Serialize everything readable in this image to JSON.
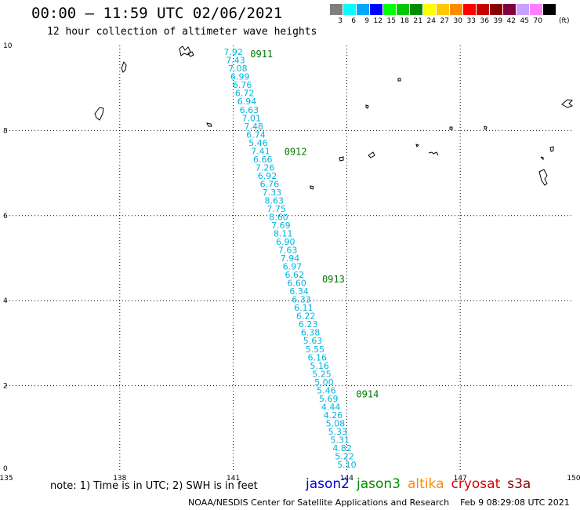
{
  "header": {
    "title": "00:00 – 11:59 UTC 02/06/2021",
    "subtitle": "12 hour collection of altimeter wave heights"
  },
  "scale": {
    "unit": "(ft)",
    "bins": [
      {
        "label": "3",
        "color": "#7f7f7f"
      },
      {
        "label": "6",
        "color": "#00ffff"
      },
      {
        "label": "9",
        "color": "#00a8ff"
      },
      {
        "label": "12",
        "color": "#0000ff"
      },
      {
        "label": "15",
        "color": "#00ff00"
      },
      {
        "label": "18",
        "color": "#00c800"
      },
      {
        "label": "21",
        "color": "#008c00"
      },
      {
        "label": "24",
        "color": "#ffff00"
      },
      {
        "label": "27",
        "color": "#ffc800"
      },
      {
        "label": "30",
        "color": "#ff8c00"
      },
      {
        "label": "33",
        "color": "#ff0000"
      },
      {
        "label": "36",
        "color": "#c80000"
      },
      {
        "label": "39",
        "color": "#8c0000"
      },
      {
        "label": "42",
        "color": "#800040"
      },
      {
        "label": "45",
        "color": "#c8a0ff"
      },
      {
        "label": "70",
        "color": "#ff80ff"
      },
      {
        "label": "",
        "color": "#000000"
      }
    ]
  },
  "map": {
    "lon_range": [
      135,
      150
    ],
    "lat_range": [
      0,
      10
    ],
    "lon_ticks": [
      "135",
      "138",
      "141",
      "144",
      "147",
      "150"
    ],
    "lat_ticks": [
      "0",
      "2",
      "4",
      "6",
      "8",
      "10"
    ],
    "track_color": "#00b4dc",
    "time_color": "#007800",
    "track_start": {
      "lon": 141.0,
      "lat": 9.85
    },
    "track_end": {
      "lon": 144.0,
      "lat": 0.0
    },
    "swh": [
      "7.92",
      "7.43",
      "7.08",
      "6.99",
      "6.76",
      "6.72",
      "6.94",
      "6.63",
      "7.01",
      "7.48",
      "6.74",
      "5.46",
      "7.41",
      "6.66",
      "7.26",
      "6.92",
      "6.76",
      "7.33",
      "8.63",
      "7.75",
      "8.60",
      "7.69",
      "8.11",
      "6.90",
      "7.63",
      "7.94",
      "6.97",
      "6.62",
      "6.60",
      "6.34",
      "6.33",
      "6.11",
      "6.22",
      "6.23",
      "6.38",
      "5.63",
      "5.55",
      "6.16",
      "5.16",
      "5.25",
      "5.00",
      "5.46",
      "5.69",
      "4.44",
      "4.26",
      "5.08",
      "5.33",
      "5.31",
      "4.82",
      "5.22",
      "5.10"
    ],
    "times": [
      {
        "label": "0911",
        "lon": 141.2,
        "lat": 9.8
      },
      {
        "label": "0912",
        "lon": 142.1,
        "lat": 7.5
      },
      {
        "label": "0913",
        "lon": 143.1,
        "lat": 4.5
      },
      {
        "label": "0914",
        "lon": 144.0,
        "lat": 1.8
      }
    ]
  },
  "footer": {
    "note": "note:  1) Time is in UTC;  2) SWH is in feet",
    "satellites": [
      {
        "name": "jason2",
        "color": "#0000dc"
      },
      {
        "name": "jason3",
        "color": "#008c00"
      },
      {
        "name": "altika",
        "color": "#ff8c00"
      },
      {
        "name": "cryosat",
        "color": "#dc0000"
      },
      {
        "name": "s3a",
        "color": "#8c0000"
      }
    ],
    "credit": "NOAA/NESDIS Center for Satellite Applications and Research",
    "timestamp": "Feb  9 08:29:08 UTC 2021"
  }
}
